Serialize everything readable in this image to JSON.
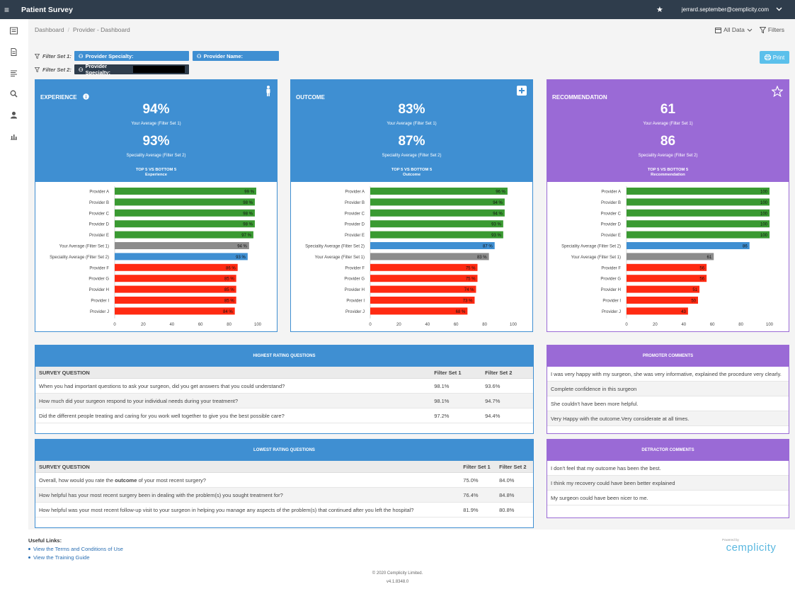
{
  "header": {
    "app_title": "Patient Survey",
    "user_email": "jerrard.september@cemplicity.com"
  },
  "breadcrumb": [
    "Dashboard",
    "Provider - Dashboard"
  ],
  "toolbar": {
    "all_data_label": "All Data",
    "filters_label": "Filters",
    "print_label": "Print"
  },
  "filters": {
    "set1_label": "Filter Set 1:",
    "set1_specialty": "Provider Specialty:",
    "set1_name": "Provider Name:",
    "set2_label": "Filter Set 2:",
    "set2_specialty": "Provider Specialty:"
  },
  "cards": [
    {
      "title": "EXPERIENCE",
      "value1": "94%",
      "caption1": "Your Average (Filter Set 1)",
      "value2": "93%",
      "caption2": "Speciality Average (Filter Set 2)",
      "subtitle_line1": "TOP 5 VS BOTTOM 5",
      "subtitle_line2": "Experience",
      "color": "#3f8fd2",
      "chart_data": {
        "type": "bar",
        "orientation": "horizontal",
        "xlim": [
          0,
          100
        ],
        "x_ticks": [
          "0",
          "20",
          "40",
          "60",
          "80",
          "100"
        ],
        "categories": [
          "Provider A",
          "Provider B",
          "Provider C",
          "Provider D",
          "Provider E",
          "Your Average (Filter Set 1)",
          "Speciality Average (Filter Set 2)",
          "Provider F",
          "Provider G",
          "Provider H",
          "Provider I",
          "Provider J"
        ],
        "values": [
          99,
          98,
          98,
          98,
          97,
          94,
          93,
          86,
          85,
          85,
          85,
          84
        ],
        "value_labels": [
          "99 %",
          "98 %",
          "98 %",
          "98 %",
          "97 %",
          "94 %",
          "93 %",
          "86 %",
          "85 %",
          "85 %",
          "85 %",
          "84 %"
        ],
        "bar_colors": [
          "#3a9a32",
          "#3a9a32",
          "#3a9a32",
          "#3a9a32",
          "#3a9a32",
          "#8c8c8c",
          "#3f8fd2",
          "#ff2a12",
          "#ff2a12",
          "#ff2a12",
          "#ff2a12",
          "#ff2a12"
        ]
      }
    },
    {
      "title": "OUTCOME",
      "value1": "83%",
      "caption1": "Your Average (Filter Set 1)",
      "value2": "87%",
      "caption2": "Speciality Average (Filter Set 2)",
      "subtitle_line1": "TOP 5 VS BOTTOM 5",
      "subtitle_line2": "Outcome",
      "color": "#3f8fd2",
      "chart_data": {
        "type": "bar",
        "orientation": "horizontal",
        "xlim": [
          0,
          100
        ],
        "x_ticks": [
          "0",
          "20",
          "40",
          "60",
          "80",
          "100"
        ],
        "categories": [
          "Provider A",
          "Provider B",
          "Provider C",
          "Provider D",
          "Provider E",
          "Speciality Average (Filter Set 2)",
          "Your Average (Filter Set 1)",
          "Provider F",
          "Provider G",
          "Provider H",
          "Provider I",
          "Provider J"
        ],
        "values": [
          96,
          94,
          94,
          93,
          93,
          87,
          83,
          75,
          75,
          74,
          73,
          68
        ],
        "value_labels": [
          "96 %",
          "94 %",
          "94 %",
          "93 %",
          "93 %",
          "87 %",
          "83 %",
          "75 %",
          "75 %",
          "74 %",
          "73 %",
          "68 %"
        ],
        "bar_colors": [
          "#3a9a32",
          "#3a9a32",
          "#3a9a32",
          "#3a9a32",
          "#3a9a32",
          "#3f8fd2",
          "#8c8c8c",
          "#ff2a12",
          "#ff2a12",
          "#ff2a12",
          "#ff2a12",
          "#ff2a12"
        ]
      }
    },
    {
      "title": "RECOMMENDATION",
      "value1": "61",
      "caption1": "Your Average (Filter Set 1)",
      "value2": "86",
      "caption2": "Speciality Average (Filter Set 2)",
      "subtitle_line1": "TOP 5 VS BOTTOM 5",
      "subtitle_line2": "Recommendation",
      "color": "#9a6ad6",
      "chart_data": {
        "type": "bar",
        "orientation": "horizontal",
        "xlim": [
          0,
          100
        ],
        "x_ticks": [
          "0",
          "20",
          "40",
          "60",
          "80",
          "100"
        ],
        "categories": [
          "Provider A",
          "Provider B",
          "Provider C",
          "Provider D",
          "Provider E",
          "Speciality Average (Filter Set 2)",
          "Your Average (Filter Set 1)",
          "Provider F",
          "Provider G",
          "Provider H",
          "Provider I",
          "Provider J"
        ],
        "values": [
          100,
          100,
          100,
          100,
          100,
          86,
          61,
          56,
          56,
          51,
          50,
          43
        ],
        "value_labels": [
          "100",
          "100",
          "100",
          "100",
          "100",
          "86",
          "61",
          "56",
          "56",
          "51",
          "50",
          "43"
        ],
        "bar_colors": [
          "#3a9a32",
          "#3a9a32",
          "#3a9a32",
          "#3a9a32",
          "#3a9a32",
          "#3f8fd2",
          "#8c8c8c",
          "#ff2a12",
          "#ff2a12",
          "#ff2a12",
          "#ff2a12",
          "#ff2a12"
        ]
      }
    }
  ],
  "highest": {
    "title": "HIGHEST RATING QUESTIONS",
    "col_question": "SURVEY QUESTION",
    "col_set1": "Filter Set 1",
    "col_set2": "Filter Set 2",
    "rows": [
      {
        "q": "When you had important questions to ask your surgeon, did you get answers that you could understand?",
        "s1": "98.1%",
        "s2": "93.6%"
      },
      {
        "q": "How much did your surgeon respond to your individual needs during your treatment?",
        "s1": "98.1%",
        "s2": "94.7%"
      },
      {
        "q": "Did the different people treating and caring for you work well together to give you the best possible care?",
        "s1": "97.2%",
        "s2": "94.4%"
      }
    ]
  },
  "lowest": {
    "title": "LOWEST RATING QUESTIONS",
    "col_question": "SURVEY QUESTION",
    "col_set1": "Filter Set 1",
    "col_set2": "Filter Set 2",
    "row1_pre": "Overall, how would you rate the ",
    "row1_bold": "outcome",
    "row1_post": " of your most recent surgery?",
    "rows": [
      {
        "s1": "75.0%",
        "s2": "84.0%"
      },
      {
        "q": "How helpful has your most recent surgery been in dealing with the problem(s) you sought treatment for?",
        "s1": "76.4%",
        "s2": "84.8%"
      },
      {
        "q": "How helpful was your most recent follow-up visit to your surgeon in helping you manage any aspects of the problem(s) that continued after you left the hospital?",
        "s1": "81.9%",
        "s2": "80.8%"
      }
    ]
  },
  "promoter": {
    "title": "PROMOTER COMMENTS",
    "items": [
      "I was very happy with my surgeon, she was very informative, explained the procedure very clearly.",
      "Complete confidence in this surgeon",
      "She couldn't have been more helpful.",
      "Very Happy with the outcome.Very considerate at all times."
    ]
  },
  "detractor": {
    "title": "DETRACTOR COMMENTS",
    "items": [
      "I don't feel that my outcome has been the best.",
      "I think my recovery could have been better explained",
      "My surgeon could have been nicer to me."
    ]
  },
  "links": {
    "title": "Useful Links:",
    "items": [
      "View the Terms and Conditions of Use",
      "View the Training Guide"
    ]
  },
  "brand": {
    "powered": "Powered by",
    "name": "cemplicity"
  },
  "footer": {
    "copyright": "© 2020 Cemplicity Limited.",
    "version": "v4.1.8348.0"
  }
}
